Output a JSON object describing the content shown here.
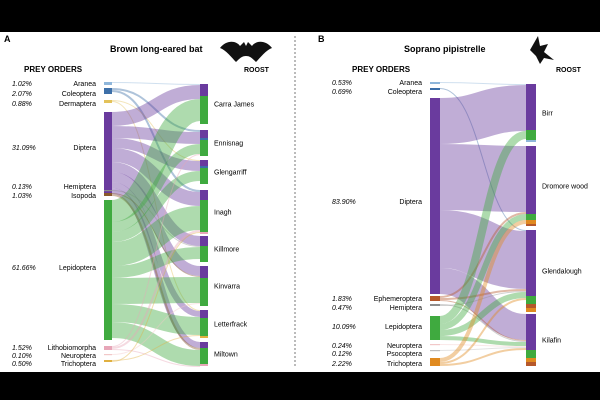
{
  "panel_a": {
    "letter": "A",
    "title": "Brown long-eared bat",
    "prey_header": "PREY ORDERS",
    "roost_header": "ROOST",
    "prey": [
      {
        "pct": "1.02%",
        "name": "Aranea",
        "color": "#8FB6DA"
      },
      {
        "pct": "2.07%",
        "name": "Coleoptera",
        "color": "#3D6FA8"
      },
      {
        "pct": "0.88%",
        "name": "Dermaptera",
        "color": "#E3C25A"
      },
      {
        "pct": "31.09%",
        "name": "Diptera",
        "color": "#6A3B9E"
      },
      {
        "pct": "0.13%",
        "name": "Hemiptera",
        "color": "#8E8E8E"
      },
      {
        "pct": "1.03%",
        "name": "Isopoda",
        "color": "#8B5A2B"
      },
      {
        "pct": "61.66%",
        "name": "Lepidoptera",
        "color": "#3FAA3F"
      },
      {
        "pct": "1.52%",
        "name": "Lithobiomorpha",
        "color": "#E7A6B8"
      },
      {
        "pct": "0.10%",
        "name": "Neuroptera",
        "color": "#F2C8C8"
      },
      {
        "pct": "0.50%",
        "name": "Trichoptera",
        "color": "#E0B040"
      }
    ],
    "roosts": [
      "Carra James",
      "Ennisnag",
      "Glengarriff",
      "Inagh",
      "Killmore",
      "Kinvarra",
      "Letterfrack",
      "Miltown"
    ]
  },
  "panel_b": {
    "letter": "B",
    "title": "Soprano pipistrelle",
    "prey_header": "PREY ORDERS",
    "roost_header": "ROOST",
    "prey": [
      {
        "pct": "0.53%",
        "name": "Aranea",
        "color": "#8FB6DA"
      },
      {
        "pct": "0.69%",
        "name": "Coleoptera",
        "color": "#3D6FA8"
      },
      {
        "pct": "83.90%",
        "name": "Diptera",
        "color": "#6A3B9E"
      },
      {
        "pct": "1.83%",
        "name": "Ephemeroptera",
        "color": "#B5582B"
      },
      {
        "pct": "0.47%",
        "name": "Hemiptera",
        "color": "#8E8E8E"
      },
      {
        "pct": "10.09%",
        "name": "Lepidoptera",
        "color": "#3FAA3F"
      },
      {
        "pct": "0.24%",
        "name": "Neuroptera",
        "color": "#F2C8C8"
      },
      {
        "pct": "0.12%",
        "name": "Psocoptera",
        "color": "#BDBDBD"
      },
      {
        "pct": "2.22%",
        "name": "Trichoptera",
        "color": "#E08A20"
      }
    ],
    "roosts": [
      "Birr",
      "Dromore wood",
      "Glendalough",
      "Kilafin"
    ]
  }
}
